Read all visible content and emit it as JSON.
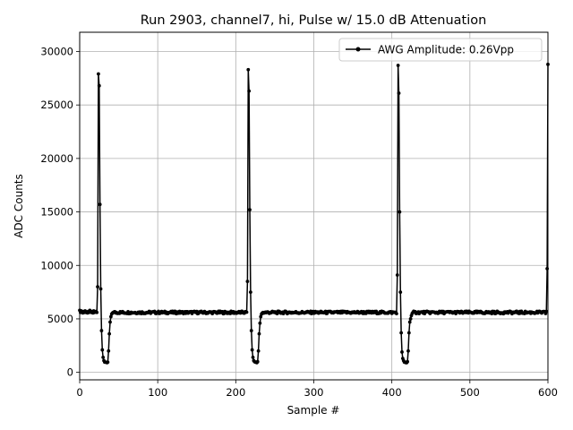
{
  "chart_data": {
    "type": "line",
    "title": "Run 2903, channel7, hi, Pulse w/ 15.0 dB Attenuation",
    "xlabel": "Sample #",
    "ylabel": "ADC Counts",
    "xlim": [
      0,
      600
    ],
    "ylim": [
      -700,
      31800
    ],
    "xticks": [
      0,
      100,
      200,
      300,
      400,
      500,
      600
    ],
    "yticks": [
      0,
      5000,
      10000,
      15000,
      20000,
      25000,
      30000
    ],
    "grid": true,
    "legend_position": "top-right",
    "line_color": "#000000",
    "marker": "dot",
    "series": [
      {
        "name": "AWG Amplitude: 0.26Vpp",
        "baseline": 5600,
        "pulses": [
          {
            "start": 23,
            "values": [
              8000,
              27900,
              26800,
              15700,
              7800,
              3900,
              2100,
              1400,
              1100,
              950,
              950,
              950,
              900,
              950,
              2000,
              3600,
              4700,
              5200,
              5450,
              5550,
              5600
            ]
          },
          {
            "start": 215,
            "values": [
              8500,
              28300,
              26300,
              15200,
              7500,
              3900,
              2100,
              1400,
              1100,
              1000,
              950,
              950,
              900,
              1000,
              2000,
              3600,
              4600,
              5200,
              5450,
              5550,
              5600
            ]
          },
          {
            "start": 407,
            "values": [
              9100,
              28700,
              26100,
              15000,
              7500,
              3700,
              1900,
              1300,
              1100,
              950,
              950,
              900,
              900,
              1000,
              2000,
              3700,
              4700,
              5000,
              5300,
              5500,
              5600
            ]
          }
        ],
        "pre_values": [
          5800,
          5600,
          5750,
          5650,
          5550,
          5700,
          5600,
          5750,
          5600,
          5650,
          5550,
          5700,
          5600,
          5800,
          5650,
          5600,
          5700,
          5550,
          5750,
          5600,
          5650,
          5700,
          5600
        ],
        "tail": {
          "start": 597,
          "values": [
            5500,
            5700,
            9700,
            28800
          ]
        }
      }
    ]
  }
}
